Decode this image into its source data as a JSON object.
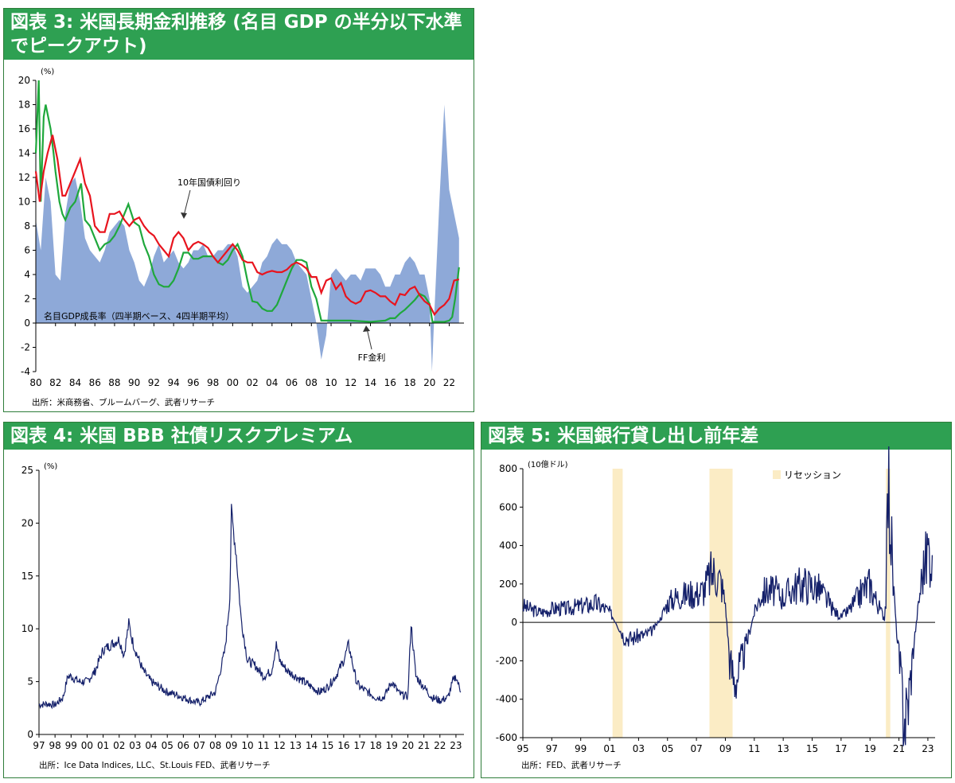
{
  "fig3": {
    "title": "図表 3: 米国長期金利推移 (名目 GDP の半分以下水準でピークアウト)",
    "source": "出所：米商務省、ブルームバーグ、武者リサーチ",
    "annotations": {
      "bond": "10年国債利回り",
      "gdp": "名目GDP成長率（四半期ベース、4四半期平均）",
      "ff": "FF金利"
    }
  },
  "fig4": {
    "title": "図表 4: 米国 BBB 社債リスクプレミアム",
    "source": "出所：Ice Data Indices, LLC、St.Louis FED、武者リサーチ"
  },
  "fig5": {
    "title": "図表 5: 米国銀行貸し出し前年差",
    "source": "出所：FED、武者リサーチ"
  },
  "colors": {
    "header": "#2ea052",
    "gdp_area": "#8ea9d8",
    "bond": "#e8141e",
    "ff": "#1fa83c",
    "navy": "#14206a",
    "recession": "#fbecc5"
  },
  "chart_data": [
    {
      "id": "fig3",
      "type": "line",
      "ylabel": "(%)",
      "ylim": [
        -4,
        20
      ],
      "yticks": [
        "-4",
        "-2",
        "0",
        "2",
        "4",
        "6",
        "8",
        "10",
        "12",
        "14",
        "16",
        "18",
        "20"
      ],
      "xlim": [
        1980,
        2023.5
      ],
      "xticks": [
        "80",
        "82",
        "84",
        "86",
        "88",
        "90",
        "92",
        "94",
        "96",
        "98",
        "00",
        "02",
        "04",
        "06",
        "08",
        "10",
        "12",
        "14",
        "16",
        "18",
        "20",
        "22"
      ],
      "series": [
        {
          "name": "名目GDP成長率（四半期ベース、4四半期平均）",
          "kind": "area",
          "x": [
            1980,
            1980.5,
            1981,
            1981.5,
            1982,
            1982.5,
            1983,
            1983.5,
            1984,
            1984.5,
            1985,
            1985.5,
            1986,
            1986.5,
            1987,
            1987.5,
            1988,
            1988.5,
            1989,
            1989.5,
            1990,
            1990.5,
            1991,
            1991.5,
            1992,
            1992.5,
            1993,
            1993.5,
            1994,
            1994.5,
            1995,
            1995.5,
            1996,
            1996.5,
            1997,
            1997.5,
            1998,
            1998.5,
            1999,
            1999.5,
            2000,
            2000.5,
            2001,
            2001.5,
            2002,
            2002.5,
            2003,
            2003.5,
            2004,
            2004.5,
            2005,
            2005.5,
            2006,
            2006.5,
            2007,
            2007.5,
            2008,
            2008.5,
            2009,
            2009.5,
            2010,
            2010.5,
            2011,
            2011.5,
            2012,
            2012.5,
            2013,
            2013.5,
            2014,
            2014.5,
            2015,
            2015.5,
            2016,
            2016.5,
            2017,
            2017.5,
            2018,
            2018.5,
            2019,
            2019.5,
            2020,
            2020.25,
            2020.5,
            2021,
            2021.5,
            2022,
            2022.5,
            2023
          ],
          "values": [
            8.5,
            6,
            12,
            10,
            4,
            3.5,
            9,
            11.5,
            12,
            10,
            7,
            6,
            5.5,
            5,
            6,
            7.5,
            8,
            8.5,
            8,
            6,
            5,
            3.5,
            3,
            4,
            5.5,
            6.5,
            5,
            5.5,
            6,
            5,
            4.5,
            5,
            6,
            6,
            6.5,
            5.5,
            5.5,
            6,
            6,
            6.5,
            6.5,
            5.5,
            3,
            2.5,
            3,
            3.5,
            5,
            5.5,
            6.5,
            7,
            6.5,
            6.5,
            6,
            5,
            4.5,
            4,
            2,
            0,
            -3,
            -1,
            4,
            4.5,
            4,
            3.5,
            4,
            4,
            3.5,
            4.5,
            4.5,
            4.5,
            4,
            3,
            3,
            4,
            4,
            5,
            5.5,
            5,
            4,
            4,
            2,
            -4,
            1,
            10,
            18,
            11,
            9,
            7
          ]
        },
        {
          "name": "10年国債利回り",
          "kind": "line",
          "x": [
            1980,
            1980.4,
            1980.8,
            1981.2,
            1981.7,
            1982.2,
            1982.7,
            1983,
            1983.5,
            1984,
            1984.5,
            1985,
            1985.5,
            1986,
            1986.5,
            1987,
            1987.5,
            1988,
            1988.5,
            1989,
            1989.5,
            1990,
            1990.5,
            1991,
            1991.5,
            1992,
            1992.5,
            1993,
            1993.5,
            1994,
            1994.5,
            1995,
            1995.5,
            1996,
            1996.5,
            1997,
            1997.5,
            1998,
            1998.5,
            1999,
            1999.5,
            2000,
            2000.5,
            2001,
            2001.5,
            2002,
            2002.5,
            2003,
            2003.5,
            2004,
            2004.5,
            2005,
            2005.5,
            2006,
            2006.5,
            2007,
            2007.5,
            2008,
            2008.5,
            2009,
            2009.5,
            2010,
            2010.5,
            2011,
            2011.5,
            2012,
            2012.5,
            2013,
            2013.5,
            2014,
            2014.5,
            2015,
            2015.5,
            2016,
            2016.5,
            2017,
            2017.5,
            2018,
            2018.5,
            2019,
            2019.5,
            2020,
            2020.5,
            2021,
            2021.5,
            2022,
            2022.5,
            2023
          ],
          "values": [
            12.5,
            10,
            12.5,
            14,
            15.5,
            13.5,
            10.5,
            10.5,
            11.5,
            12.5,
            13.5,
            11.5,
            10.5,
            8,
            7.5,
            7.5,
            9,
            9,
            9.2,
            8.5,
            8,
            8.5,
            8.7,
            8,
            7.5,
            7.2,
            6.5,
            6,
            5.5,
            7,
            7.5,
            7,
            6,
            6.5,
            6.7,
            6.5,
            6.2,
            5.5,
            5,
            5.5,
            6,
            6.5,
            6,
            5.2,
            5,
            5,
            4.2,
            4,
            4.2,
            4.3,
            4.2,
            4.2,
            4.4,
            4.8,
            5,
            4.8,
            4.5,
            3.8,
            3.8,
            2.5,
            3.5,
            3.7,
            2.8,
            3.3,
            2.2,
            1.8,
            1.6,
            1.8,
            2.6,
            2.7,
            2.5,
            2.2,
            2.2,
            1.8,
            1.5,
            2.4,
            2.3,
            2.8,
            3,
            2.3,
            1.8,
            1.5,
            0.7,
            1.2,
            1.5,
            2,
            3.5,
            3.6
          ]
        },
        {
          "name": "FF金利",
          "kind": "line",
          "x": [
            1980,
            1980.3,
            1980.5,
            1980.8,
            1981,
            1981.5,
            1981.8,
            1982,
            1982.4,
            1982.7,
            1983,
            1983.5,
            1984,
            1984.6,
            1985,
            1985.5,
            1986,
            1986.5,
            1987,
            1987.5,
            1988,
            1988.5,
            1989,
            1989.4,
            1990,
            1990.5,
            1991,
            1991.5,
            1992,
            1992.5,
            1993,
            1993.5,
            1994,
            1994.5,
            1995,
            1995.5,
            1996,
            1996.5,
            1997,
            1997.5,
            1998,
            1998.5,
            1999,
            1999.5,
            2000,
            2000.5,
            2001,
            2001.5,
            2002,
            2002.5,
            2003,
            2003.5,
            2004,
            2004.5,
            2005,
            2005.5,
            2006,
            2006.5,
            2007,
            2007.5,
            2008,
            2008.5,
            2009,
            2010,
            2012,
            2014,
            2015.5,
            2016,
            2016.5,
            2017,
            2017.5,
            2018,
            2018.5,
            2019,
            2019.5,
            2020,
            2020.3,
            2021,
            2021.5,
            2022,
            2022.3,
            2022.6,
            2023
          ],
          "values": [
            14,
            20,
            10,
            17,
            18,
            16,
            14,
            12.5,
            10,
            9,
            8.5,
            9.5,
            10,
            11.5,
            8.5,
            8,
            7,
            6,
            6.5,
            6.7,
            7.2,
            8,
            9,
            9.8,
            8.3,
            8,
            6.5,
            5.5,
            4,
            3.2,
            3,
            3,
            3.5,
            4.5,
            5.8,
            5.8,
            5.3,
            5.3,
            5.5,
            5.5,
            5.5,
            5,
            4.8,
            5.2,
            6,
            6.5,
            5.5,
            3.5,
            1.8,
            1.7,
            1.2,
            1,
            1,
            1.5,
            2.5,
            3.5,
            4.5,
            5.2,
            5.2,
            5,
            3,
            2,
            0.2,
            0.2,
            0.2,
            0.1,
            0.2,
            0.4,
            0.4,
            0.8,
            1.1,
            1.5,
            1.9,
            2.4,
            2.2,
            1.6,
            0.1,
            0.1,
            0.1,
            0.2,
            0.5,
            2,
            4.6
          ]
        }
      ]
    },
    {
      "id": "fig4",
      "type": "line",
      "ylabel": "(%)",
      "ylim": [
        0,
        25
      ],
      "yticks": [
        "0",
        "5",
        "10",
        "15",
        "20",
        "25"
      ],
      "xlim": [
        1997,
        2023.5
      ],
      "xticks": [
        "97",
        "98",
        "99",
        "00",
        "01",
        "02",
        "03",
        "04",
        "05",
        "06",
        "07",
        "08",
        "09",
        "10",
        "11",
        "12",
        "13",
        "14",
        "15",
        "16",
        "17",
        "18",
        "19",
        "20",
        "21",
        "22",
        "23"
      ],
      "series": [
        {
          "name": "BBB",
          "x": [
            1997,
            1997.5,
            1998,
            1998.5,
            1998.8,
            1999,
            1999.5,
            2000,
            2000.5,
            2001,
            2001.5,
            2002,
            2002.3,
            2002.6,
            2002.8,
            2003,
            2003.5,
            2004,
            2004.5,
            2005,
            2005.5,
            2006,
            2006.5,
            2007,
            2007.5,
            2008,
            2008.3,
            2008.6,
            2008.9,
            2009,
            2009.3,
            2009.6,
            2010,
            2010.5,
            2011,
            2011.5,
            2011.8,
            2012,
            2012.5,
            2013,
            2013.5,
            2014,
            2014.5,
            2015,
            2015.5,
            2016,
            2016.3,
            2016.8,
            2017,
            2018,
            2018.5,
            2019,
            2019.5,
            2020,
            2020.2,
            2020.5,
            2021,
            2021.5,
            2022,
            2022.5,
            2022.8,
            2023,
            2023.3
          ],
          "values": [
            2.8,
            2.9,
            2.8,
            3.5,
            5.5,
            5.5,
            5,
            5,
            6,
            8,
            8.5,
            9,
            7.5,
            10.5,
            9,
            8,
            6,
            5,
            4.5,
            4,
            3.8,
            3.5,
            3.2,
            3,
            3.5,
            4,
            6,
            8,
            13,
            21,
            17,
            11,
            7,
            6.5,
            5.5,
            6,
            8.5,
            7,
            6,
            5.5,
            5,
            4.5,
            4,
            4.5,
            5.5,
            7,
            8.5,
            5,
            4.5,
            3.5,
            3.5,
            5,
            3.8,
            3.6,
            10.5,
            5.5,
            4.5,
            3.5,
            3.2,
            3.5,
            5,
            5.5,
            4
          ]
        }
      ]
    },
    {
      "id": "fig5",
      "type": "line",
      "ylabel": "(10億ドル)",
      "ylim": [
        -600,
        800
      ],
      "yticks": [
        "-600",
        "-400",
        "-200",
        "0",
        "200",
        "400",
        "600",
        "800"
      ],
      "xlim": [
        1995,
        2023.5
      ],
      "xticks": [
        "95",
        "97",
        "99",
        "01",
        "03",
        "05",
        "07",
        "09",
        "11",
        "13",
        "15",
        "17",
        "19",
        "21",
        "23"
      ],
      "legend": "リセッション",
      "recessions": [
        [
          2001.2,
          2001.9
        ],
        [
          2007.9,
          2009.5
        ],
        [
          2020.1,
          2020.4
        ]
      ],
      "series": [
        {
          "name": "銀行貸し出し前年差",
          "x": [
            1995,
            1995.5,
            1996,
            1996.5,
            1997,
            1997.5,
            1998,
            1998.5,
            1999,
            1999.5,
            2000,
            2000.5,
            2001,
            2001.5,
            2002,
            2002.5,
            2003,
            2003.5,
            2004,
            2004.5,
            2005,
            2005.5,
            2006,
            2006.5,
            2007,
            2007.5,
            2008,
            2008.3,
            2008.7,
            2009,
            2009.3,
            2009.6,
            2010,
            2010.5,
            2011,
            2011.5,
            2012,
            2012.5,
            2013,
            2013.5,
            2014,
            2014.5,
            2015,
            2015.5,
            2016,
            2016.5,
            2017,
            2017.5,
            2018,
            2018.5,
            2019,
            2019.5,
            2020,
            2020.1,
            2020.25,
            2020.4,
            2020.6,
            2021,
            2021.3,
            2021.5,
            2021.8,
            2022,
            2022.3,
            2022.6,
            2022.9,
            2023,
            2023.3
          ],
          "values": [
            85,
            70,
            55,
            55,
            70,
            75,
            70,
            80,
            85,
            90,
            100,
            80,
            55,
            -10,
            -75,
            -85,
            -70,
            -65,
            -40,
            20,
            100,
            130,
            140,
            150,
            150,
            170,
            250,
            260,
            210,
            100,
            -200,
            -300,
            -250,
            -100,
            50,
            150,
            170,
            160,
            130,
            170,
            190,
            200,
            190,
            170,
            120,
            60,
            30,
            60,
            110,
            170,
            200,
            100,
            20,
            140,
            730,
            560,
            200,
            -200,
            -450,
            -500,
            -300,
            -130,
            60,
            250,
            340,
            390,
            350
          ]
        }
      ]
    }
  ]
}
